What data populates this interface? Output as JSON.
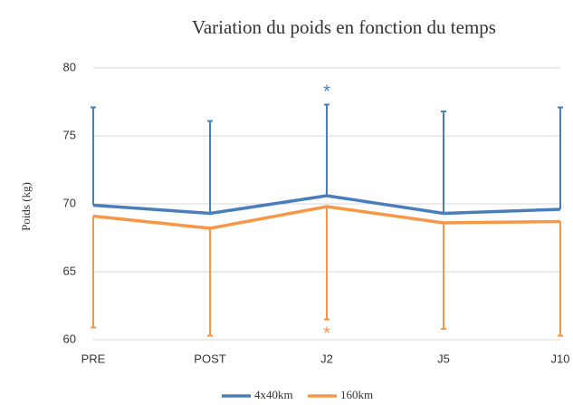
{
  "chart_data": {
    "type": "line",
    "title": "Variation du poids en fonction du temps",
    "y_label": "Poids (kg)",
    "categories": [
      "PRE",
      "POST",
      "J2",
      "J5",
      "J10"
    ],
    "series": [
      {
        "name": "4x40km",
        "color": "#4a7ebb",
        "values": [
          69.9,
          69.3,
          70.6,
          69.3,
          69.6
        ],
        "errors": [
          7.2,
          6.8,
          6.7,
          7.5,
          7.5
        ],
        "error_direction": "up"
      },
      {
        "name": "160km",
        "color": "#f79646",
        "values": [
          69.1,
          68.2,
          69.8,
          68.6,
          68.7
        ],
        "errors": [
          8.2,
          7.9,
          8.3,
          7.8,
          8.4
        ],
        "error_direction": "down"
      }
    ],
    "annotations": [
      {
        "text": "*",
        "color": "#4a7ebb"
      },
      {
        "text": "*",
        "color": "#f79646"
      }
    ],
    "ylim": [
      60,
      80
    ],
    "yticks": [
      60,
      65,
      70,
      75,
      80
    ],
    "grid": true,
    "legend": "bottom"
  }
}
